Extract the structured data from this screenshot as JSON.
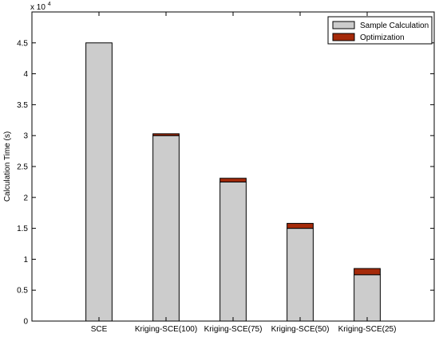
{
  "chart_data": {
    "type": "bar",
    "stacked": true,
    "categories": [
      "SCE",
      "Kriging-SCE(100)",
      "Kriging-SCE(75)",
      "Kriging-SCE(50)",
      "Kriging-SCE(25)"
    ],
    "series": [
      {
        "name": "Sample Calculation",
        "values": [
          45000,
          30000,
          22500,
          15000,
          7500
        ],
        "color": "#cccccc"
      },
      {
        "name": "Optimization",
        "values": [
          0,
          300,
          600,
          800,
          1000
        ],
        "color": "#a52a0a"
      }
    ],
    "ylabel": "Calculation Time (s)",
    "xlabel": "",
    "y_multiplier_label": "x 10",
    "y_multiplier_exponent": "4",
    "y_ticks": [
      0,
      0.5,
      1,
      1.5,
      2,
      2.5,
      3,
      3.5,
      4,
      4.5
    ],
    "y_tick_labels": [
      "0",
      "0.5",
      "1",
      "1.5",
      "2",
      "2.5",
      "3",
      "3.5",
      "4",
      "4.5"
    ],
    "ylim": [
      0,
      50000
    ],
    "grid": false,
    "legend_position": "top-right"
  }
}
